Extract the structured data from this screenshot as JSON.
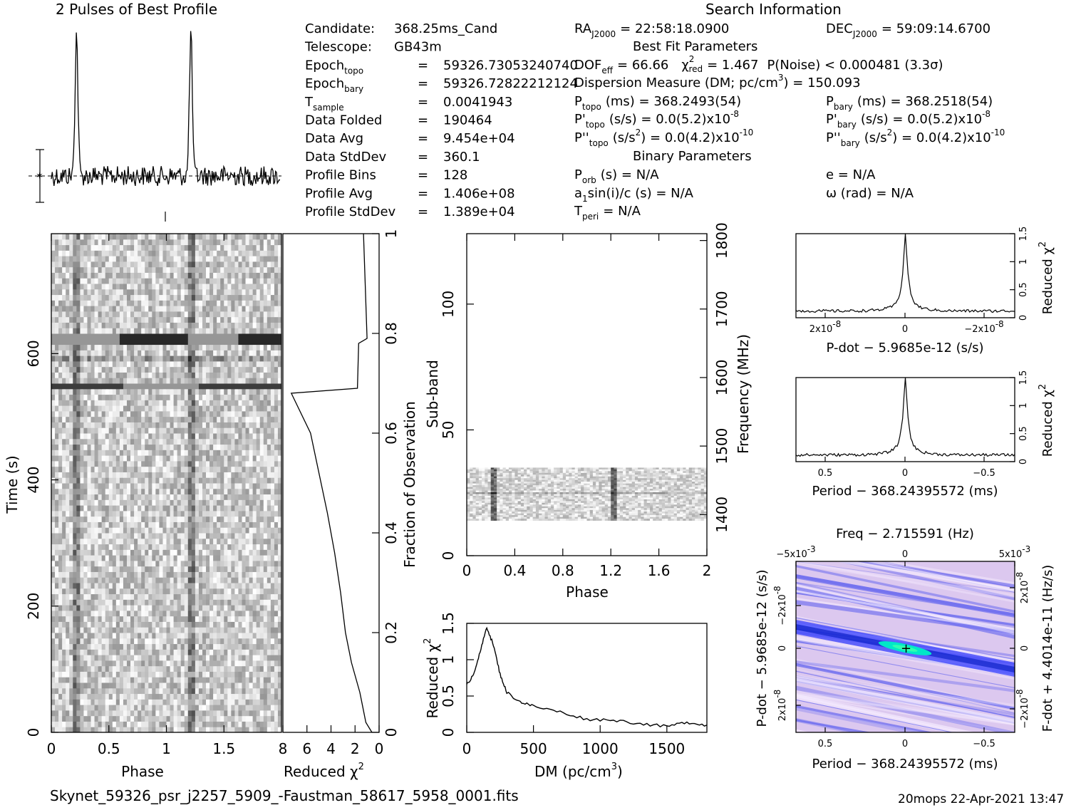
{
  "title_profile": "2 Pulses of Best Profile",
  "title_search": "Search Information",
  "info_left": [
    {
      "label": "Candidate:",
      "eq": "",
      "value": "368.25ms_Cand"
    },
    {
      "label": "Telescope:",
      "eq": "",
      "value": "GB43m"
    },
    {
      "label": "Epoch",
      "sub": "topo",
      "eq": "=",
      "value": "59326.73053240740"
    },
    {
      "label": "Epoch",
      "sub": "bary",
      "eq": "=",
      "value": "59326.72822212124"
    },
    {
      "label": "T",
      "sub": "sample",
      "eq": "=",
      "value": "0.0041943"
    },
    {
      "label": "Data Folded",
      "eq": "=",
      "value": "190464"
    },
    {
      "label": "Data Avg",
      "eq": "=",
      "value": "9.454e+04"
    },
    {
      "label": "Data StdDev",
      "eq": "=",
      "value": "360.1"
    },
    {
      "label": "Profile Bins",
      "eq": "=",
      "value": "128"
    },
    {
      "label": "Profile Avg",
      "eq": "=",
      "value": "1.406e+08"
    },
    {
      "label": "Profile StdDev",
      "eq": "=",
      "value": "1.389e+04"
    }
  ],
  "info_mid": {
    "ra": "RA",
    "ra_sub": "J2000",
    "ra_val": "= 22:58:18.0900",
    "best_fit": "Best Fit Parameters",
    "dof_label": "DOF",
    "dof_sub": "eff",
    "dof_val": "= 66.66",
    "chi_label": "χ",
    "chi_sub": "red",
    "chi_val": "= 1.467",
    "pnoise": "P(Noise) < 0.000481   (3.3σ)",
    "dm": "Dispersion Measure (DM; pc/cm",
    "dm_val": ") = 150.093",
    "ptopo_label": "P",
    "ptopo_sub": "topo",
    "ptopo_val": "(ms) =  368.2493(54)",
    "pdtopo_label": "P'",
    "pdtopo_sub": "topo",
    "pdtopo_val": "(s/s) = 0.0(5.2)x10",
    "pdtopo_exp": "-8",
    "pddtopo_label": "P''",
    "pddtopo_sub": "topo",
    "pddtopo_val": "(s/s",
    "pddtopo_val2": ") = 0.0(4.2)x10",
    "pddtopo_exp": "-10",
    "binary": "Binary Parameters",
    "porb": "P",
    "porb_sub": "orb",
    "porb_val": "(s) = N/A",
    "a1": "a",
    "a1_sub": "1",
    "a1_val": "sin(i)/c (s) = N/A",
    "tperi": "T",
    "tperi_sub": "peri",
    "tperi_val": "= N/A"
  },
  "info_right": {
    "dec": "DEC",
    "dec_sub": "J2000",
    "dec_val": "= 59:09:14.6700",
    "pbary_label": "P",
    "pbary_sub": "bary",
    "pbary_val": "(ms) =  368.2518(54)",
    "pdbary_label": "P'",
    "pdbary_sub": "bary",
    "pdbary_val": "(s/s) = 0.0(5.2)x10",
    "pdbary_exp": "-8",
    "pddbary_label": "P''",
    "pddbary_sub": "bary",
    "pddbary_val": "(s/s",
    "pddbary_val2": ") = 0.0(4.2)x10",
    "pddbary_exp": "-10",
    "e_val": "e = N/A",
    "omega_val": "ω (rad) = N/A"
  },
  "footer_file": "Skynet_59326_psr_j2257_5909_-Faustman_58617_5958_0001.fits",
  "footer_stamp": "20mops 22-Apr-2021 13:47",
  "chart_data": [
    {
      "type": "line",
      "name": "profile",
      "title": "2 Pulses of Best Profile",
      "xlim": [
        0,
        2
      ],
      "peaks_phase": [
        0.22,
        1.22
      ]
    },
    {
      "type": "heatmap",
      "name": "time-phase",
      "xlabel": "Phase",
      "ylabel": "Time (s)",
      "xlim": [
        0,
        2
      ],
      "ylim": [
        0,
        790
      ],
      "x_ticks": [
        "0",
        "0.5",
        "1",
        "1.5"
      ],
      "y_ticks": [
        "0",
        "200",
        "400",
        "600"
      ],
      "right_axis_label": "Fraction of Observation",
      "right_ticks": [
        "0",
        "0.2",
        "0.4",
        "0.6",
        "0.8",
        "1"
      ]
    },
    {
      "type": "line",
      "name": "reduced-chi2-vs-time",
      "xlabel": "Reduced χ",
      "x_ticks": [
        "8",
        "6",
        "4",
        "2",
        "0"
      ],
      "xlim": [
        8,
        0
      ],
      "ylim": [
        0,
        1
      ],
      "points": [
        [
          0.6,
          0
        ],
        [
          1.1,
          0.02
        ],
        [
          1.6,
          0.08
        ],
        [
          2.3,
          0.14
        ],
        [
          2.8,
          0.2
        ],
        [
          3.2,
          0.28
        ],
        [
          3.7,
          0.36
        ],
        [
          4.3,
          0.44
        ],
        [
          5.0,
          0.52
        ],
        [
          5.7,
          0.6
        ],
        [
          7.3,
          0.68
        ],
        [
          1.8,
          0.69
        ],
        [
          1.7,
          0.78
        ],
        [
          1.0,
          0.79
        ],
        [
          1.3,
          1.0
        ]
      ]
    },
    {
      "type": "heatmap",
      "name": "subband-phase",
      "xlabel": "Phase",
      "ylabel": "Sub-band",
      "xlim": [
        0,
        2
      ],
      "ylim": [
        0,
        128
      ],
      "x_ticks": [
        "0",
        "0.4",
        "0.8",
        "1.2",
        "1.6",
        "2"
      ],
      "y_ticks": [
        "0",
        "50",
        "100"
      ],
      "right_axis_label": "Frequency (MHz)",
      "right_ticks": [
        "1400",
        "1500",
        "1600",
        "1700",
        "1800"
      ]
    },
    {
      "type": "line",
      "name": "dm-curve",
      "xlabel": "DM (pc/cm",
      "ylabel": "Reduced χ",
      "xlim": [
        0,
        1800
      ],
      "ylim": [
        0,
        1.5
      ],
      "x_ticks": [
        "0",
        "500",
        "1000",
        "1500"
      ],
      "y_ticks": [
        "0",
        "0.5",
        "1",
        "1.5"
      ],
      "points": [
        [
          0,
          0.65
        ],
        [
          50,
          0.8
        ],
        [
          100,
          1.1
        ],
        [
          150,
          1.45
        ],
        [
          200,
          1.2
        ],
        [
          250,
          0.8
        ],
        [
          300,
          0.55
        ],
        [
          400,
          0.42
        ],
        [
          500,
          0.36
        ],
        [
          700,
          0.28
        ],
        [
          900,
          0.18
        ],
        [
          1100,
          0.17
        ],
        [
          1300,
          0.12
        ],
        [
          1500,
          0.08
        ],
        [
          1650,
          0.14
        ],
        [
          1800,
          0.1
        ]
      ]
    },
    {
      "type": "line",
      "name": "pdot-curve",
      "xlabel": "P-dot − 5.9685e-12 (s/s)",
      "ylabel": "Reduced χ",
      "ylim": [
        0,
        1.5
      ],
      "x_ticks": [
        "2x10",
        "0",
        "−2x10"
      ],
      "x_tick_exp": "-8",
      "y_ticks": [
        "0",
        "0.5",
        "1",
        "1.5"
      ]
    },
    {
      "type": "line",
      "name": "period-curve",
      "xlabel": "Period − 368.24395572 (ms)",
      "ylabel": "Reduced χ",
      "ylim": [
        0,
        1.5
      ],
      "x_ticks": [
        "0.5",
        "0",
        "−0.5"
      ],
      "y_ticks": [
        "0",
        "0.5",
        "1",
        "1.5"
      ]
    },
    {
      "type": "heatmap",
      "name": "period-pdot-plane",
      "title": "Freq − 2.715591 (Hz)",
      "xlabel": "Period − 368.24395572 (ms)",
      "ylabel": "P-dot − 5.9685e-12 (s/s)",
      "right_axis_label": "F-dot + 4.4014e-11 (Hz/s)",
      "x_ticks": [
        "0.5",
        "0",
        "−0.5"
      ],
      "top_ticks": [
        "−5x10",
        "0",
        "5x10"
      ],
      "top_tick_exp": "-3",
      "left_ticks": [
        "−2x10",
        "0",
        "2x10"
      ],
      "left_tick_exp": "-8",
      "right_ticks": [
        "2x10",
        "0",
        "−2x10"
      ],
      "right_tick_exp": "-8"
    }
  ],
  "colors": {
    "plane_high": "#00ffc0",
    "plane_mid": "#0033ff",
    "plane_low": "#f0d8f0"
  }
}
